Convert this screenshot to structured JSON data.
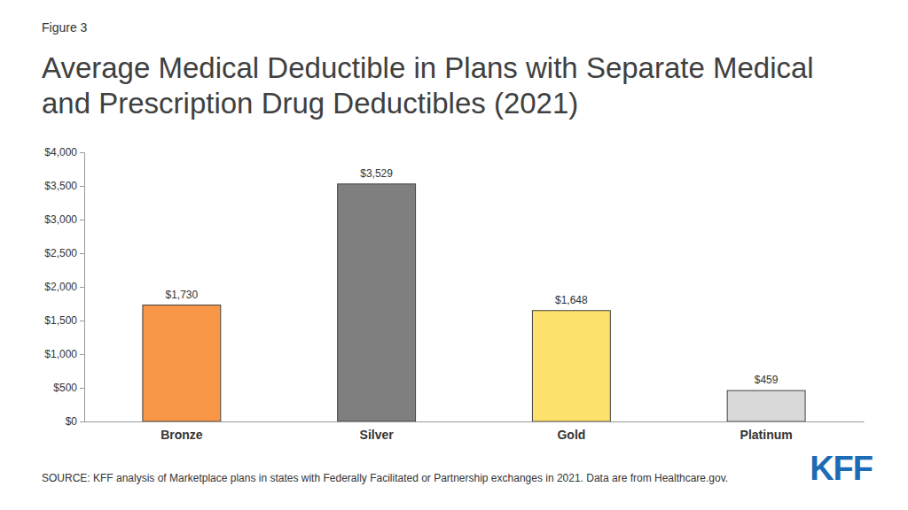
{
  "chart_data": {
    "type": "bar",
    "figure_label": "Figure 3",
    "title": "Average Medical Deductible in Plans with Separate Medical and Prescription Drug Deductibles (2021)",
    "categories": [
      "Bronze",
      "Silver",
      "Gold",
      "Platinum"
    ],
    "values": [
      1730,
      3529,
      1648,
      459
    ],
    "value_labels": [
      "$1,730",
      "$3,529",
      "$1,648",
      "$459"
    ],
    "colors": [
      "#f79646",
      "#7f7f7f",
      "#fde16c",
      "#d9d9d9"
    ],
    "ylim": [
      0,
      4000
    ],
    "yticks": [
      {
        "value": 0,
        "label": "$0"
      },
      {
        "value": 500,
        "label": "$500"
      },
      {
        "value": 1000,
        "label": "$1,000"
      },
      {
        "value": 1500,
        "label": "$1,500"
      },
      {
        "value": 2000,
        "label": "$2,000"
      },
      {
        "value": 2500,
        "label": "$2,500"
      },
      {
        "value": 3000,
        "label": "$3,000"
      },
      {
        "value": 3500,
        "label": "$3,500"
      },
      {
        "value": 4000,
        "label": "$4,000"
      }
    ],
    "grid": false,
    "data_labels": true,
    "source": "SOURCE: KFF analysis of Marketplace plans in states with Federally Facilitated or Partnership exchanges in 2021. Data are from Healthcare.gov.",
    "logo": "KFF"
  }
}
